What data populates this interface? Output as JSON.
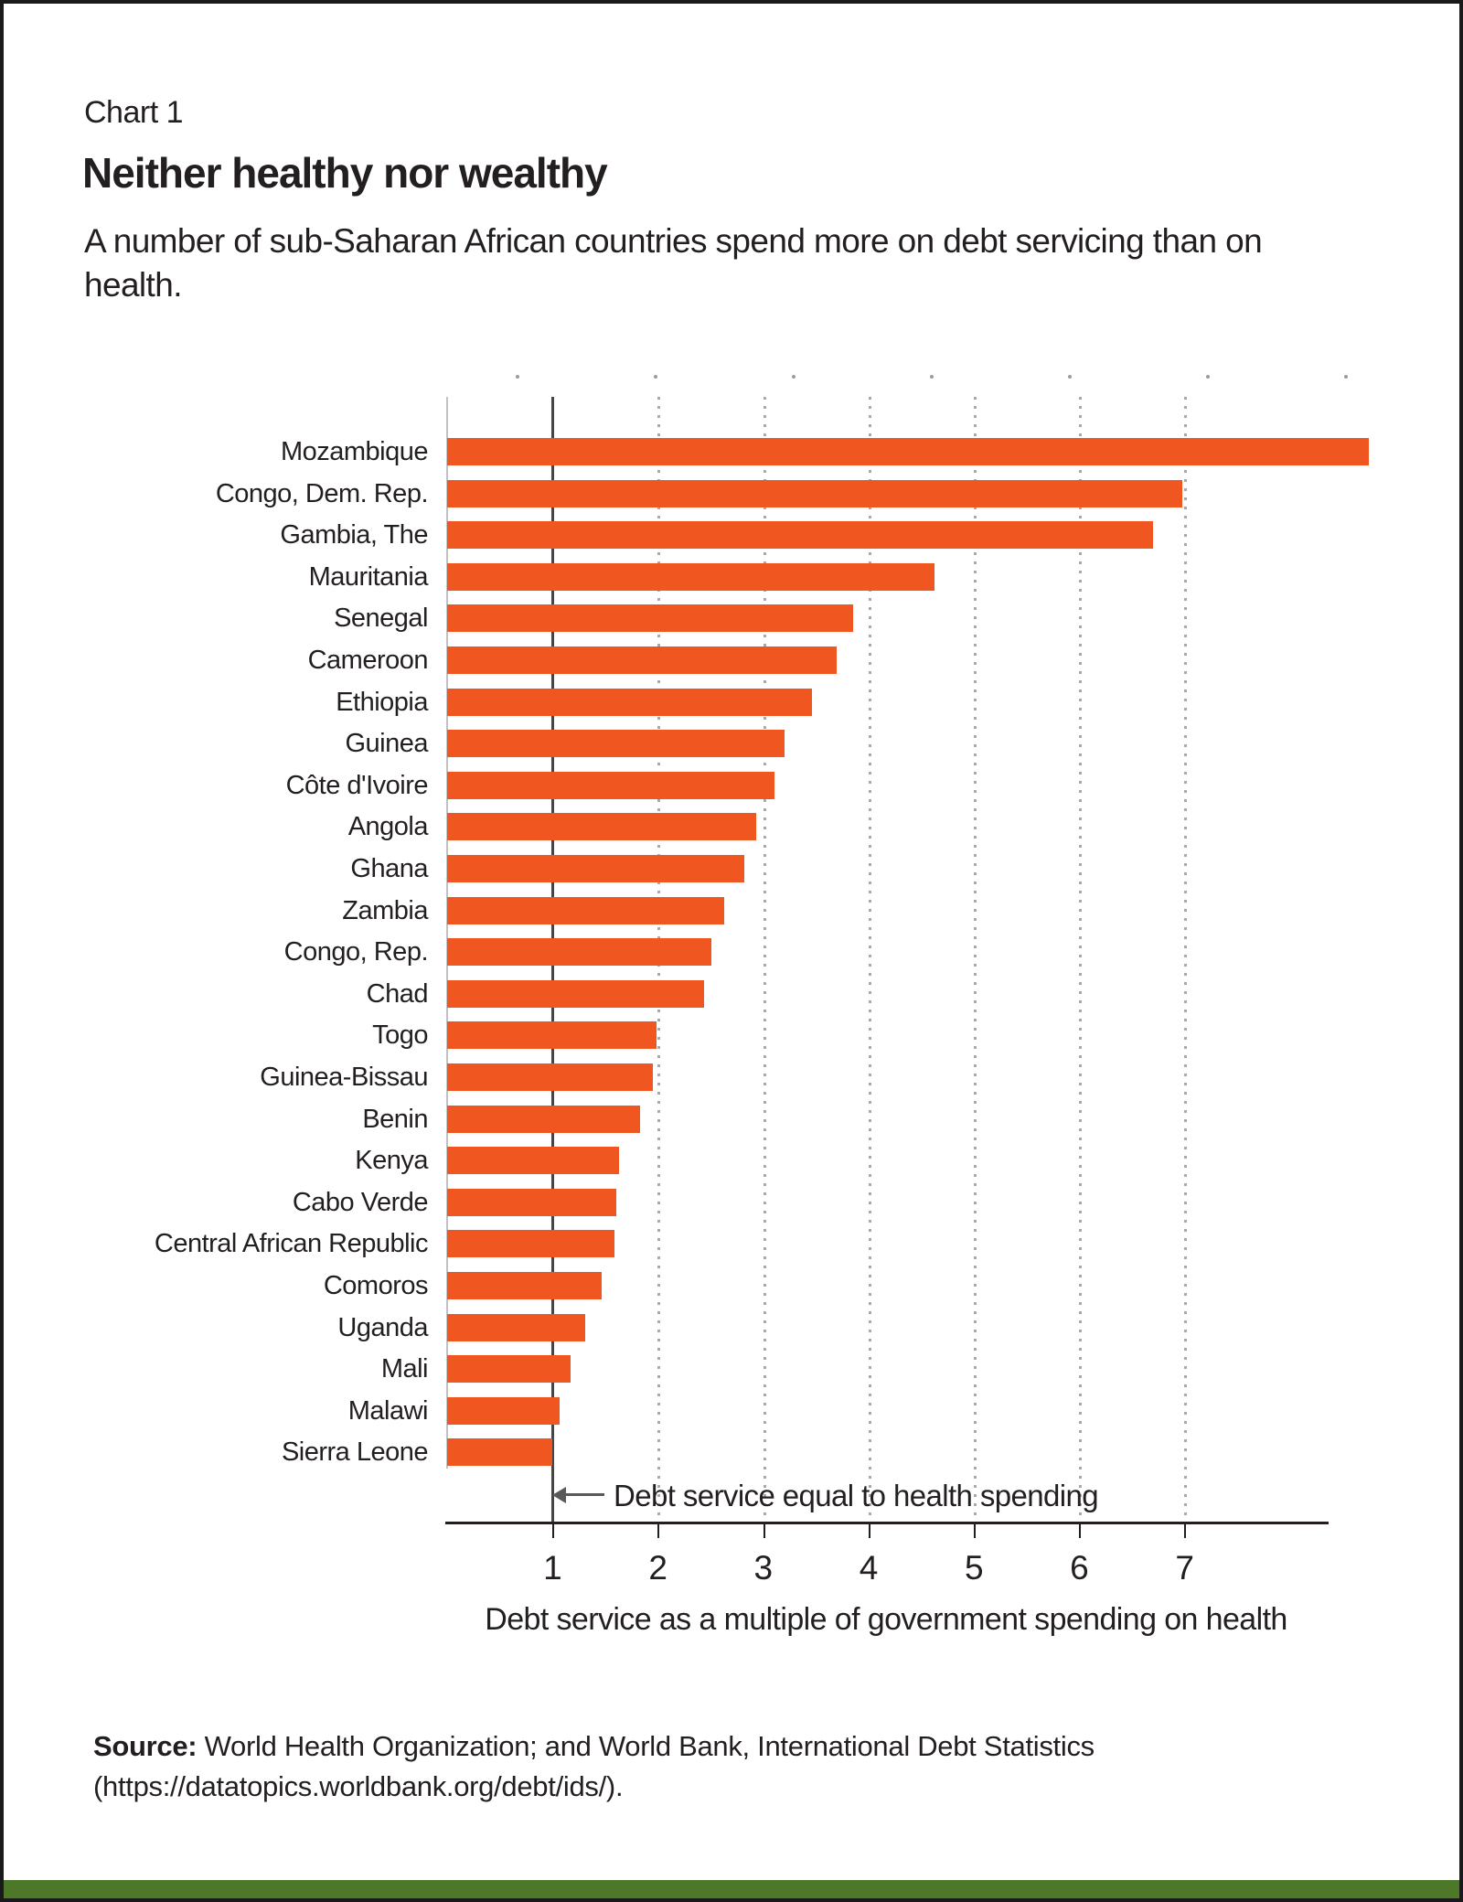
{
  "header": {
    "kicker": "Chart 1",
    "title": "Neither healthy nor wealthy",
    "subtitle": "A number of sub-Saharan African countries spend more on debt servicing than on health."
  },
  "chart_data": {
    "type": "bar",
    "orientation": "horizontal",
    "categories": [
      "Mozambique",
      "Congo, Dem. Rep.",
      "Gambia, The",
      "Mauritania",
      "Senegal",
      "Cameroon",
      "Ethiopia",
      "Guinea",
      "Côte d'Ivoire",
      "Angola",
      "Ghana",
      "Zambia",
      "Congo, Rep.",
      "Chad",
      "Togo",
      "Guinea-Bissau",
      "Benin",
      "Kenya",
      "Cabo Verde",
      "Central African Republic",
      "Comoros",
      "Uganda",
      "Mali",
      "Malawi",
      "Sierra Leone"
    ],
    "values": [
      8.75,
      6.98,
      6.7,
      4.63,
      3.85,
      3.7,
      3.46,
      3.2,
      3.11,
      2.93,
      2.82,
      2.63,
      2.51,
      2.44,
      1.99,
      1.95,
      1.83,
      1.63,
      1.61,
      1.59,
      1.47,
      1.31,
      1.17,
      1.07,
      1.0
    ],
    "title": "Neither healthy nor wealthy",
    "xlabel": "Debt service as a multiple of government spending on health",
    "ylabel": "",
    "x_ticks": [
      1,
      2,
      3,
      4,
      5,
      6,
      7
    ],
    "xlim": [
      0,
      9.3
    ],
    "grid": "dotted vertical gridlines at 2-7, solid reference line at 1",
    "legend": "none",
    "reference_line": {
      "x": 1,
      "label": "Debt service equal to health spending"
    },
    "bar_color": "#f0561f"
  },
  "annotation": {
    "text": "Debt service equal to health spending"
  },
  "source": {
    "label": "Source:",
    "text": " World Health Organization; and World Bank, International Debt Statistics (https://datatopics.worldbank.org/debt/ids/)."
  },
  "colors": {
    "bar": "#f0561f",
    "text": "#231f20",
    "gridline": "#a9a9a9",
    "reference_line": "#454547",
    "axis": "#231f20",
    "green_band": "#4e7829",
    "frame_border": "#1a1a1a"
  }
}
